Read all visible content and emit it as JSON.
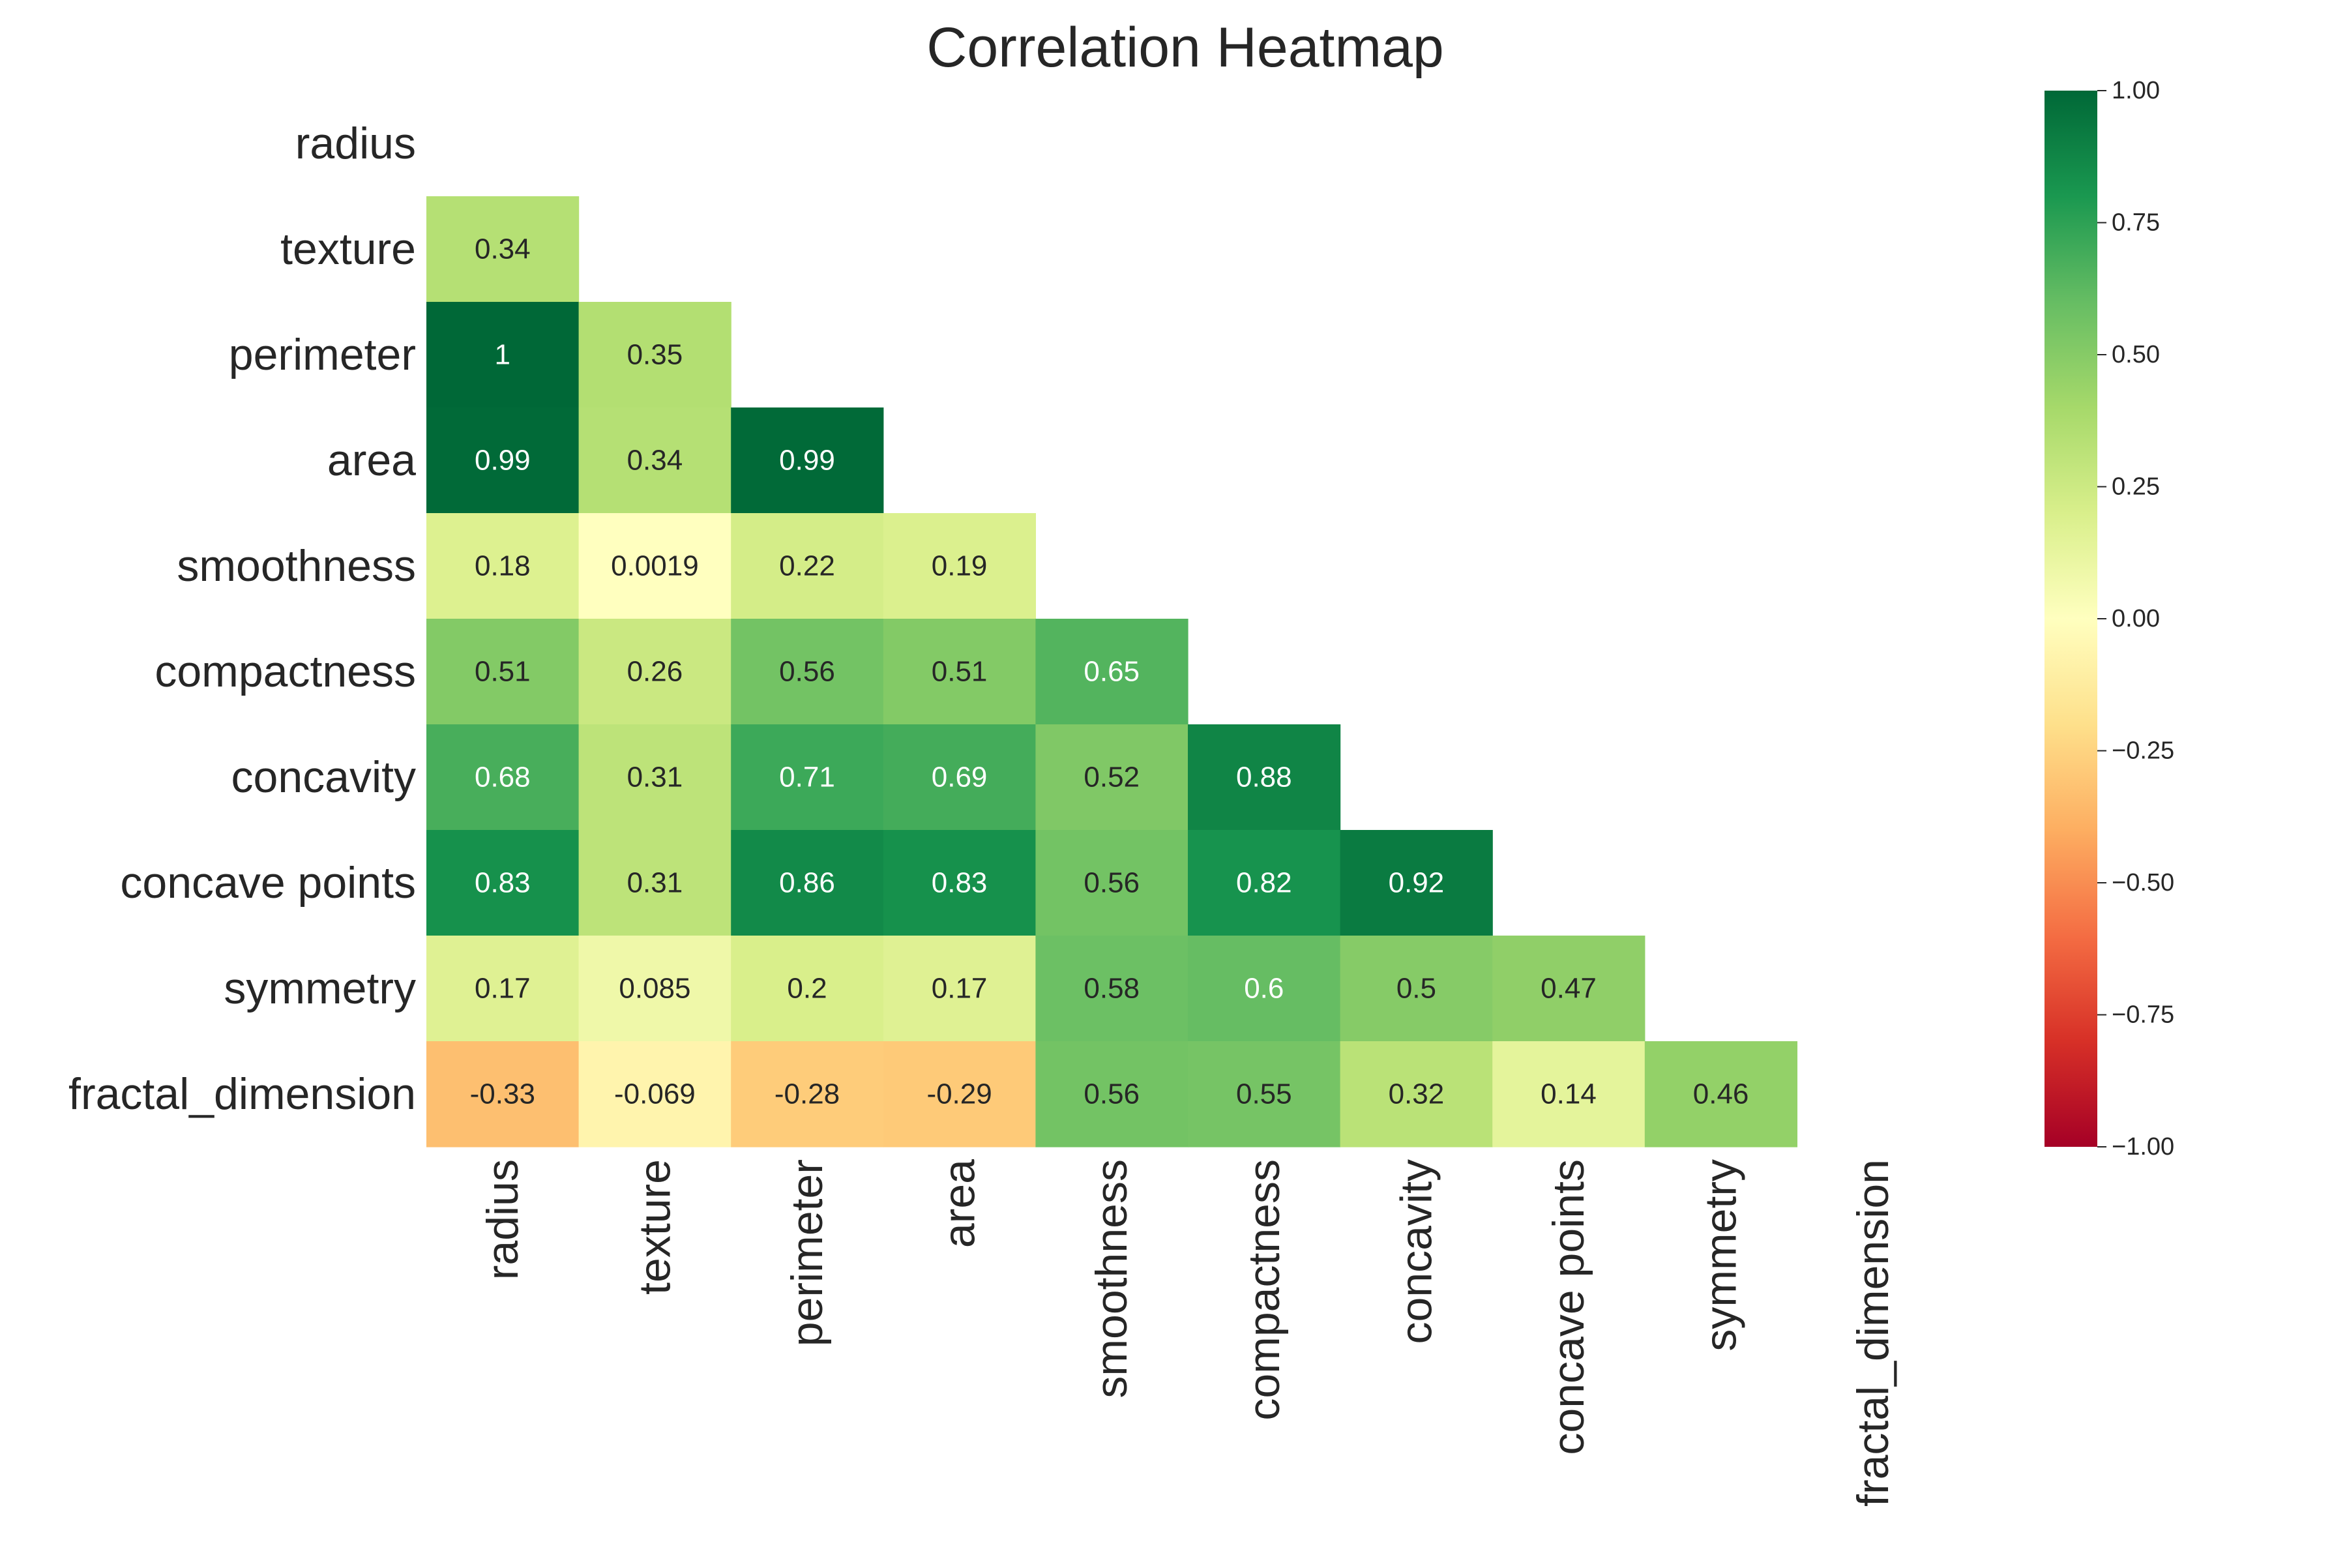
{
  "chart_data": {
    "type": "heatmap",
    "title": "Correlation Heatmap",
    "variables": [
      "radius",
      "texture",
      "perimeter",
      "area",
      "smoothness",
      "compactness",
      "concavity",
      "concave points",
      "symmetry",
      "fractal_dimension"
    ],
    "mask": "upper-triangle-including-diagonal",
    "cells": [
      {
        "row": "texture",
        "col": "radius",
        "value": 0.34,
        "label": "0.34"
      },
      {
        "row": "perimeter",
        "col": "radius",
        "value": 1.0,
        "label": "1"
      },
      {
        "row": "perimeter",
        "col": "texture",
        "value": 0.35,
        "label": "0.35"
      },
      {
        "row": "area",
        "col": "radius",
        "value": 0.99,
        "label": "0.99"
      },
      {
        "row": "area",
        "col": "texture",
        "value": 0.34,
        "label": "0.34"
      },
      {
        "row": "area",
        "col": "perimeter",
        "value": 0.99,
        "label": "0.99"
      },
      {
        "row": "smoothness",
        "col": "radius",
        "value": 0.18,
        "label": "0.18"
      },
      {
        "row": "smoothness",
        "col": "texture",
        "value": 0.0019,
        "label": "0.0019"
      },
      {
        "row": "smoothness",
        "col": "perimeter",
        "value": 0.22,
        "label": "0.22"
      },
      {
        "row": "smoothness",
        "col": "area",
        "value": 0.19,
        "label": "0.19"
      },
      {
        "row": "compactness",
        "col": "radius",
        "value": 0.51,
        "label": "0.51"
      },
      {
        "row": "compactness",
        "col": "texture",
        "value": 0.26,
        "label": "0.26"
      },
      {
        "row": "compactness",
        "col": "perimeter",
        "value": 0.56,
        "label": "0.56"
      },
      {
        "row": "compactness",
        "col": "area",
        "value": 0.51,
        "label": "0.51"
      },
      {
        "row": "compactness",
        "col": "smoothness",
        "value": 0.65,
        "label": "0.65"
      },
      {
        "row": "concavity",
        "col": "radius",
        "value": 0.68,
        "label": "0.68"
      },
      {
        "row": "concavity",
        "col": "texture",
        "value": 0.31,
        "label": "0.31"
      },
      {
        "row": "concavity",
        "col": "perimeter",
        "value": 0.71,
        "label": "0.71"
      },
      {
        "row": "concavity",
        "col": "area",
        "value": 0.69,
        "label": "0.69"
      },
      {
        "row": "concavity",
        "col": "smoothness",
        "value": 0.52,
        "label": "0.52"
      },
      {
        "row": "concavity",
        "col": "compactness",
        "value": 0.88,
        "label": "0.88"
      },
      {
        "row": "concave points",
        "col": "radius",
        "value": 0.83,
        "label": "0.83"
      },
      {
        "row": "concave points",
        "col": "texture",
        "value": 0.31,
        "label": "0.31"
      },
      {
        "row": "concave points",
        "col": "perimeter",
        "value": 0.86,
        "label": "0.86"
      },
      {
        "row": "concave points",
        "col": "area",
        "value": 0.83,
        "label": "0.83"
      },
      {
        "row": "concave points",
        "col": "smoothness",
        "value": 0.56,
        "label": "0.56"
      },
      {
        "row": "concave points",
        "col": "compactness",
        "value": 0.82,
        "label": "0.82"
      },
      {
        "row": "concave points",
        "col": "concavity",
        "value": 0.92,
        "label": "0.92"
      },
      {
        "row": "symmetry",
        "col": "radius",
        "value": 0.17,
        "label": "0.17"
      },
      {
        "row": "symmetry",
        "col": "texture",
        "value": 0.085,
        "label": "0.085"
      },
      {
        "row": "symmetry",
        "col": "perimeter",
        "value": 0.2,
        "label": "0.2"
      },
      {
        "row": "symmetry",
        "col": "area",
        "value": 0.17,
        "label": "0.17"
      },
      {
        "row": "symmetry",
        "col": "smoothness",
        "value": 0.58,
        "label": "0.58"
      },
      {
        "row": "symmetry",
        "col": "compactness",
        "value": 0.6,
        "label": "0.6"
      },
      {
        "row": "symmetry",
        "col": "concavity",
        "value": 0.5,
        "label": "0.5"
      },
      {
        "row": "symmetry",
        "col": "concave points",
        "value": 0.47,
        "label": "0.47"
      },
      {
        "row": "fractal_dimension",
        "col": "radius",
        "value": -0.33,
        "label": "-0.33"
      },
      {
        "row": "fractal_dimension",
        "col": "texture",
        "value": -0.069,
        "label": "-0.069"
      },
      {
        "row": "fractal_dimension",
        "col": "perimeter",
        "value": -0.28,
        "label": "-0.28"
      },
      {
        "row": "fractal_dimension",
        "col": "area",
        "value": -0.29,
        "label": "-0.29"
      },
      {
        "row": "fractal_dimension",
        "col": "smoothness",
        "value": 0.56,
        "label": "0.56"
      },
      {
        "row": "fractal_dimension",
        "col": "compactness",
        "value": 0.55,
        "label": "0.55"
      },
      {
        "row": "fractal_dimension",
        "col": "concavity",
        "value": 0.32,
        "label": "0.32"
      },
      {
        "row": "fractal_dimension",
        "col": "concave points",
        "value": 0.14,
        "label": "0.14"
      },
      {
        "row": "fractal_dimension",
        "col": "symmetry",
        "value": 0.46,
        "label": "0.46"
      }
    ],
    "colorbar": {
      "colormap": "RdYlGn",
      "vmin": -1.0,
      "vmax": 1.0,
      "ticks": [
        1.0,
        0.75,
        0.5,
        0.25,
        0.0,
        -0.25,
        -0.5,
        -0.75,
        -1.0
      ],
      "tick_labels": [
        "1.00",
        "0.75",
        "0.50",
        "0.25",
        "0.00",
        "−0.25",
        "−0.50",
        "−0.75",
        "−1.00"
      ]
    },
    "grid": false,
    "legend": "colorbar-right"
  }
}
